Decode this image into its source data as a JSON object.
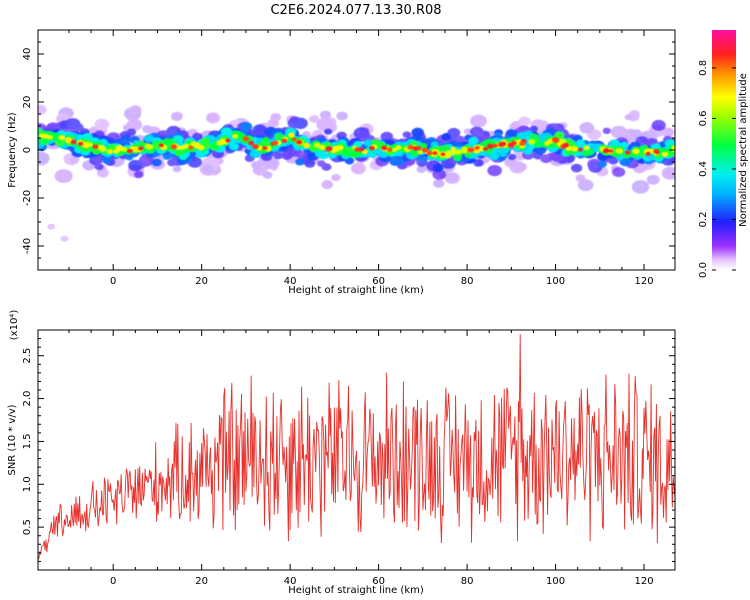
{
  "figure_title": "C2E6.2024.077.13.30.R08",
  "colors": {
    "snr_line": "#e8302a",
    "axis": "#000000",
    "background": "#ffffff"
  },
  "chart_data": [
    {
      "type": "heatmap",
      "title": "",
      "xlabel": "Height of straight line (km)",
      "ylabel": "Frequency (Hz)",
      "xlim": [
        -17,
        127
      ],
      "ylim": [
        -50,
        50
      ],
      "x_ticks": [
        0,
        20,
        40,
        60,
        80,
        100,
        120
      ],
      "y_ticks": [
        -40,
        -20,
        0,
        20,
        40
      ],
      "colorbar": {
        "label": "Normalized spectral amplitude",
        "range": [
          0,
          0.95
        ],
        "ticks": [
          0.0,
          0.2,
          0.4,
          0.6,
          0.8
        ],
        "colormap": "rainbow-white-to-magenta-red"
      },
      "ridge": {
        "description": "central frequency of the main echo band (Hz) vs height",
        "x": [
          -16,
          -12,
          -8,
          -4,
          0,
          4,
          8,
          12,
          16,
          20,
          24,
          28,
          30,
          32,
          34,
          36,
          38,
          40,
          42,
          44,
          48,
          52,
          56,
          60,
          64,
          68,
          72,
          74,
          76,
          80,
          84,
          88,
          92,
          96,
          100,
          102,
          104,
          108,
          112,
          116,
          120,
          124,
          127
        ],
        "y": [
          6,
          5,
          3,
          1,
          0,
          0,
          1,
          2,
          1,
          1,
          3,
          6,
          5,
          2,
          1,
          2,
          4,
          6,
          3,
          2,
          1,
          0,
          0,
          1,
          0,
          1,
          -1,
          -2,
          -1,
          0,
          1,
          2,
          3,
          3,
          4,
          2,
          1,
          0,
          0,
          -1,
          -1,
          -1,
          0
        ]
      },
      "isolated_points": [
        {
          "x": -14,
          "y": -32
        },
        {
          "x": -11,
          "y": -37
        }
      ]
    },
    {
      "type": "line",
      "title": "",
      "xlabel": "Height of straight line (km)",
      "ylabel": "SNR (10 * v/v)",
      "y_scale_label": "(x10⁴)",
      "xlim": [
        -17,
        127
      ],
      "ylim": [
        0,
        2.8
      ],
      "x_ticks": [
        0,
        20,
        40,
        60,
        80,
        100,
        120
      ],
      "y_ticks": [
        0.5,
        1.0,
        1.5,
        2.0,
        2.5
      ],
      "series": [
        {
          "envelope": {
            "x": [
              -17,
              -12,
              -6,
              0,
              6,
              12,
              18,
              24,
              30,
              36,
              42,
              50,
              58,
              66,
              72,
              80,
              90,
              100,
              110,
              120,
              127
            ],
            "mean": [
              0.15,
              0.55,
              0.7,
              0.8,
              0.95,
              1.05,
              1.15,
              1.25,
              1.3,
              1.35,
              1.35,
              1.3,
              1.3,
              1.35,
              1.3,
              1.3,
              1.35,
              1.4,
              1.35,
              1.3,
              1.2
            ],
            "amp": [
              0.05,
              0.25,
              0.3,
              0.35,
              0.45,
              0.5,
              0.7,
              0.9,
              1.0,
              1.05,
              1.0,
              0.95,
              0.95,
              0.95,
              0.9,
              0.9,
              0.95,
              1.0,
              1.0,
              1.0,
              0.95
            ]
          },
          "peak": {
            "x": 92,
            "y": 2.75
          }
        }
      ]
    }
  ]
}
